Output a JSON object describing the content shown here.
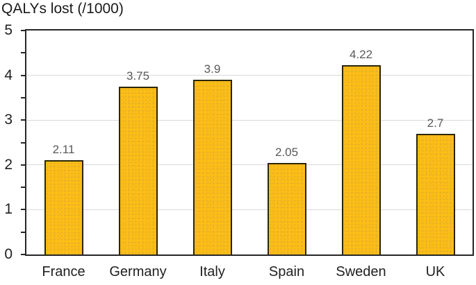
{
  "chart_data": {
    "type": "bar",
    "title": "QALYs lost (/1000)",
    "categories": [
      "France",
      "Germany",
      "Italy",
      "Spain",
      "Sweden",
      "UK"
    ],
    "values": [
      2.11,
      3.75,
      3.9,
      2.05,
      4.22,
      2.7
    ],
    "data_labels": [
      "2.11",
      "3.75",
      "3.9",
      "2.05",
      "4.22",
      "2.7"
    ],
    "xlabel": "",
    "ylabel": "QALYs lost (/1000)",
    "ylim": [
      0,
      5
    ],
    "yticks": [
      0,
      1,
      2,
      3,
      4,
      5
    ],
    "minor_tick_step": 0.5,
    "grid": "horizontal-major",
    "legend": "none",
    "colors": {
      "bar_fill": "#FBBD16",
      "bar_border": "#2A2507",
      "gridline": "#D9D9D9",
      "axis": "#262626",
      "value_label": "#595959",
      "axis_text": "#1F1F1F",
      "background": "#FFFFFF"
    }
  }
}
